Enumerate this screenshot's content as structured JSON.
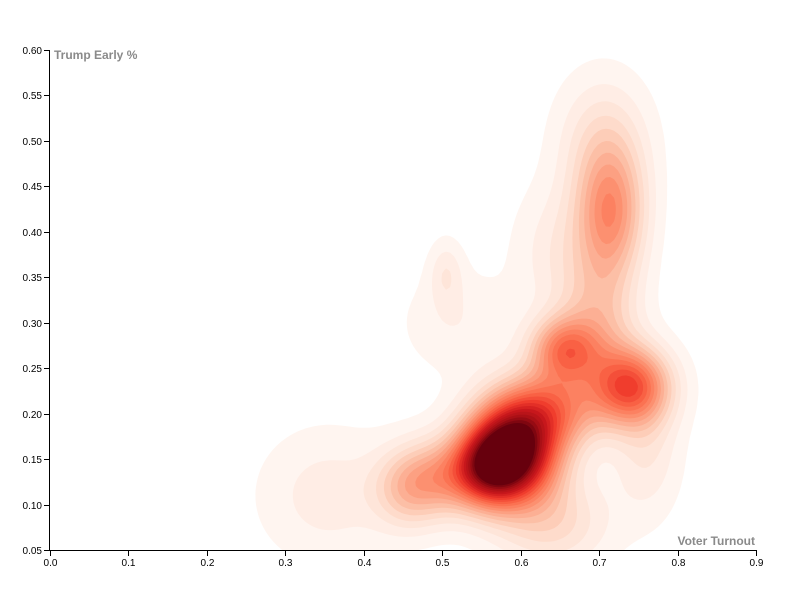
{
  "chart_data": {
    "type": "contour-density",
    "title": "",
    "xlabel": "Voter Turnout",
    "ylabel": "Trump Early %",
    "xlim": [
      0.0,
      0.9
    ],
    "ylim": [
      0.05,
      0.6
    ],
    "xticks": [
      "0.0",
      "0.1",
      "0.2",
      "0.3",
      "0.4",
      "0.5",
      "0.6",
      "0.7",
      "0.8",
      "0.9"
    ],
    "yticks": [
      "0.05",
      "0.10",
      "0.15",
      "0.20",
      "0.25",
      "0.30",
      "0.35",
      "0.40",
      "0.45",
      "0.50",
      "0.55",
      "0.60"
    ],
    "color_scale": {
      "low": "#fff5f0",
      "high": "#67000d"
    },
    "density_peaks": [
      {
        "x": 0.59,
        "y": 0.16,
        "level": "highest"
      },
      {
        "x": 0.72,
        "y": 0.42,
        "level": "medium"
      },
      {
        "x": 0.745,
        "y": 0.23,
        "level": "medium"
      },
      {
        "x": 0.66,
        "y": 0.275,
        "level": "medium"
      },
      {
        "x": 0.5,
        "y": 0.13,
        "level": "medium"
      },
      {
        "x": 0.355,
        "y": 0.11,
        "level": "low"
      },
      {
        "x": 0.505,
        "y": 0.355,
        "level": "low"
      }
    ],
    "grid": false
  }
}
